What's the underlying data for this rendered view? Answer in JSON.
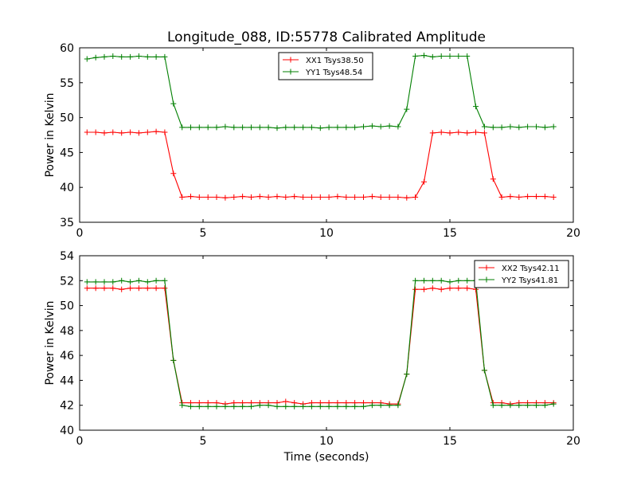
{
  "figure": {
    "title": "Longitude_088, ID:55778 Calibrated Amplitude",
    "xlabel": "Time (seconds)"
  },
  "chart_data": [
    {
      "type": "line",
      "title": "Longitude_088, ID:55778 Calibrated Amplitude",
      "xlabel": "",
      "ylabel": "Power in Kelvin",
      "xlim": [
        0,
        20
      ],
      "ylim": [
        35,
        60
      ],
      "xticks": [
        0,
        5,
        10,
        15,
        20
      ],
      "yticks": [
        35,
        40,
        45,
        50,
        55,
        60
      ],
      "grid": false,
      "legend_position": "top-center",
      "x": [
        0.3,
        0.65,
        1.0,
        1.35,
        1.7,
        2.05,
        2.4,
        2.75,
        3.1,
        3.45,
        3.8,
        4.15,
        4.5,
        4.85,
        5.2,
        5.55,
        5.9,
        6.25,
        6.6,
        6.95,
        7.3,
        7.65,
        8.0,
        8.35,
        8.7,
        9.05,
        9.4,
        9.75,
        10.1,
        10.45,
        10.8,
        11.15,
        11.5,
        11.85,
        12.2,
        12.55,
        12.9,
        13.25,
        13.6,
        13.95,
        14.3,
        14.65,
        15.0,
        15.35,
        15.7,
        16.05,
        16.4,
        16.75,
        17.1,
        17.45,
        17.8,
        18.15,
        18.5,
        18.85,
        19.2
      ],
      "series": [
        {
          "name": "XX1 Tsys38.50",
          "color": "#ff0000",
          "values": [
            47.9,
            47.9,
            47.8,
            47.9,
            47.8,
            47.9,
            47.8,
            47.9,
            48.0,
            47.9,
            42.0,
            38.6,
            38.7,
            38.6,
            38.6,
            38.6,
            38.5,
            38.6,
            38.7,
            38.6,
            38.7,
            38.6,
            38.7,
            38.6,
            38.7,
            38.6,
            38.6,
            38.6,
            38.6,
            38.7,
            38.6,
            38.6,
            38.6,
            38.7,
            38.6,
            38.6,
            38.6,
            38.5,
            38.6,
            40.8,
            47.8,
            47.9,
            47.8,
            47.9,
            47.8,
            47.9,
            47.8,
            41.2,
            38.6,
            38.7,
            38.6,
            38.7,
            38.7,
            38.7,
            38.6
          ]
        },
        {
          "name": "YY1 Tsys48.54",
          "color": "#007f00",
          "values": [
            58.4,
            58.6,
            58.7,
            58.8,
            58.7,
            58.7,
            58.8,
            58.7,
            58.7,
            58.7,
            52.0,
            48.6,
            48.6,
            48.6,
            48.6,
            48.6,
            48.7,
            48.6,
            48.6,
            48.6,
            48.6,
            48.6,
            48.5,
            48.6,
            48.6,
            48.6,
            48.6,
            48.5,
            48.6,
            48.6,
            48.6,
            48.6,
            48.7,
            48.8,
            48.7,
            48.8,
            48.7,
            51.2,
            58.8,
            58.9,
            58.7,
            58.8,
            58.8,
            58.8,
            58.8,
            51.6,
            48.7,
            48.6,
            48.6,
            48.7,
            48.6,
            48.7,
            48.7,
            48.6,
            48.7
          ]
        }
      ]
    },
    {
      "type": "line",
      "title": "",
      "xlabel": "Time (seconds)",
      "ylabel": "Power in Kelvin",
      "xlim": [
        0,
        20
      ],
      "ylim": [
        40,
        54
      ],
      "xticks": [
        0,
        5,
        10,
        15,
        20
      ],
      "yticks": [
        40,
        42,
        44,
        46,
        48,
        50,
        52,
        54
      ],
      "grid": false,
      "legend_position": "top-right",
      "x": [
        0.3,
        0.65,
        1.0,
        1.35,
        1.7,
        2.05,
        2.4,
        2.75,
        3.1,
        3.45,
        3.8,
        4.15,
        4.5,
        4.85,
        5.2,
        5.55,
        5.9,
        6.25,
        6.6,
        6.95,
        7.3,
        7.65,
        8.0,
        8.35,
        8.7,
        9.05,
        9.4,
        9.75,
        10.1,
        10.45,
        10.8,
        11.15,
        11.5,
        11.85,
        12.2,
        12.55,
        12.9,
        13.25,
        13.6,
        13.95,
        14.3,
        14.65,
        15.0,
        15.35,
        15.7,
        16.05,
        16.4,
        16.75,
        17.1,
        17.45,
        17.8,
        18.15,
        18.5,
        18.85,
        19.2
      ],
      "series": [
        {
          "name": "XX2 Tsys42.11",
          "color": "#ff0000",
          "values": [
            51.4,
            51.4,
            51.4,
            51.4,
            51.3,
            51.4,
            51.4,
            51.4,
            51.4,
            51.4,
            45.6,
            42.2,
            42.2,
            42.2,
            42.2,
            42.2,
            42.1,
            42.2,
            42.2,
            42.2,
            42.2,
            42.2,
            42.2,
            42.3,
            42.2,
            42.1,
            42.2,
            42.2,
            42.2,
            42.2,
            42.2,
            42.2,
            42.2,
            42.2,
            42.2,
            42.1,
            42.1,
            44.5,
            51.3,
            51.3,
            51.4,
            51.3,
            51.4,
            51.4,
            51.4,
            51.3,
            44.8,
            42.2,
            42.2,
            42.1,
            42.2,
            42.2,
            42.2,
            42.2,
            42.2
          ]
        },
        {
          "name": "YY2 Tsys41.81",
          "color": "#007f00",
          "values": [
            51.9,
            51.9,
            51.9,
            51.9,
            52.0,
            51.9,
            52.0,
            51.9,
            52.0,
            52.0,
            45.6,
            42.0,
            41.9,
            41.9,
            41.9,
            41.9,
            41.9,
            41.9,
            41.9,
            41.9,
            42.0,
            42.0,
            41.9,
            41.9,
            41.9,
            41.9,
            41.9,
            41.9,
            41.9,
            41.9,
            41.9,
            41.9,
            41.9,
            42.0,
            42.0,
            42.0,
            42.0,
            44.5,
            52.0,
            52.0,
            52.0,
            52.0,
            51.9,
            52.0,
            52.0,
            52.0,
            44.8,
            42.0,
            42.0,
            42.0,
            42.0,
            42.0,
            42.0,
            42.0,
            42.1
          ]
        }
      ]
    }
  ]
}
